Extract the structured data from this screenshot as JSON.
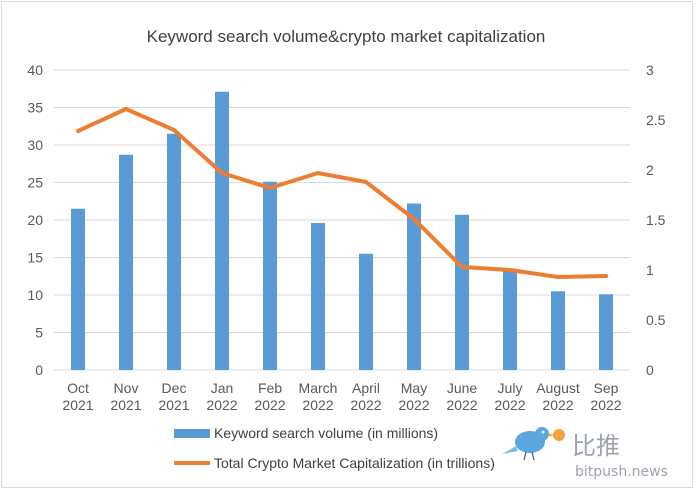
{
  "colors": {
    "bar": "#5b9bd5",
    "line": "#ed7d31",
    "grid": "#d9d9d9",
    "text": "#595959",
    "watermark_bird": "#5aa6e0",
    "watermark_coin": "#f2a33a",
    "watermark_text": "#9aa3ad"
  },
  "watermark": {
    "cn_text": "比推",
    "url_text": "bitpush.news",
    "icon": "bird-logo-icon"
  },
  "chart_data": {
    "type": "bar",
    "title": "Keyword search volume&crypto market capitalization",
    "categories": [
      [
        "Oct",
        "2021"
      ],
      [
        "Nov",
        "2021"
      ],
      [
        "Dec",
        "2021"
      ],
      [
        "Jan",
        "2022"
      ],
      [
        "Feb",
        "2022"
      ],
      [
        "March",
        "2022"
      ],
      [
        "April",
        "2022"
      ],
      [
        "May",
        "2022"
      ],
      [
        "June",
        "2022"
      ],
      [
        "July",
        "2022"
      ],
      [
        "August",
        "2022"
      ],
      [
        "Sep",
        "2022"
      ]
    ],
    "y_left": {
      "min": 0,
      "max": 40,
      "ticks": [
        "0",
        "5",
        "10",
        "15",
        "20",
        "25",
        "30",
        "35",
        "40"
      ]
    },
    "y_right": {
      "min": 0,
      "max": 3,
      "ticks": [
        "0",
        "0.5",
        "1",
        "1.5",
        "2",
        "2.5",
        "3"
      ]
    },
    "grid": true,
    "legend_position": "bottom",
    "series": [
      {
        "name": "Keyword search volume (in millions)",
        "type": "bar",
        "axis": "left",
        "values": [
          21.5,
          28.7,
          31.5,
          37.1,
          25.1,
          19.6,
          15.5,
          22.2,
          20.7,
          13.5,
          10.5,
          10.1
        ]
      },
      {
        "name": "Total Crypto Market Capitalization (in trillions)",
        "type": "line",
        "axis": "right",
        "values": [
          2.39,
          2.61,
          2.4,
          1.97,
          1.82,
          1.97,
          1.88,
          1.51,
          1.03,
          1.0,
          0.93,
          0.94
        ]
      }
    ]
  }
}
